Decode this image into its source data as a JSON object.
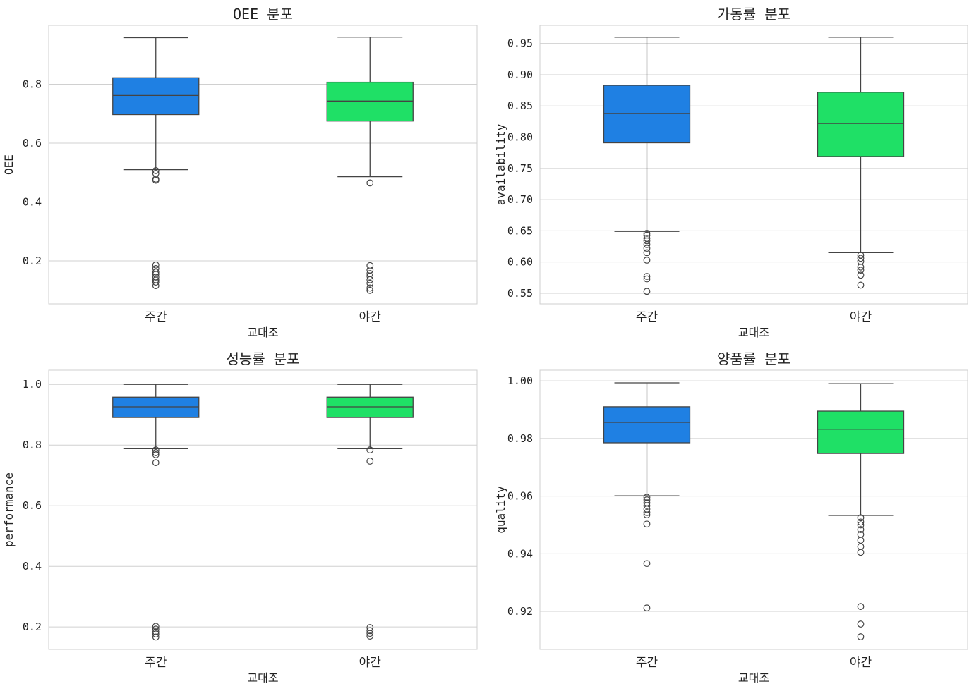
{
  "chart_data": [
    {
      "type": "box",
      "title": "OEE 분포",
      "xlabel": "교대조",
      "ylabel": "OEE",
      "categories": [
        "주간",
        "야간"
      ],
      "ylim": [
        0.054,
        1.0
      ],
      "yticks": [
        0.2,
        0.4,
        0.6,
        0.8
      ],
      "tick_decimals": 1,
      "grid": true,
      "boxes": [
        {
          "whislo": 0.51,
          "q1": 0.697,
          "med": 0.762,
          "q3": 0.822,
          "whishi": 0.958,
          "fliers": [
            0.507,
            0.497,
            0.478,
            0.474,
            0.186,
            0.174,
            0.162,
            0.155,
            0.145,
            0.135,
            0.128,
            0.116
          ]
        },
        {
          "whislo": 0.486,
          "q1": 0.675,
          "med": 0.743,
          "q3": 0.807,
          "whishi": 0.96,
          "fliers": [
            0.465,
            0.184,
            0.169,
            0.157,
            0.148,
            0.136,
            0.124,
            0.108,
            0.1
          ]
        }
      ]
    },
    {
      "type": "box",
      "title": "가동률 분포",
      "xlabel": "교대조",
      "ylabel": "availability",
      "categories": [
        "주간",
        "야간"
      ],
      "ylim": [
        0.533,
        0.979
      ],
      "yticks": [
        0.55,
        0.6,
        0.65,
        0.7,
        0.75,
        0.8,
        0.85,
        0.9,
        0.95
      ],
      "tick_decimals": 2,
      "grid": true,
      "boxes": [
        {
          "whislo": 0.649,
          "q1": 0.791,
          "med": 0.838,
          "q3": 0.883,
          "whishi": 0.96,
          "fliers": [
            0.646,
            0.643,
            0.638,
            0.634,
            0.628,
            0.622,
            0.615,
            0.603,
            0.577,
            0.573,
            0.553
          ]
        },
        {
          "whislo": 0.615,
          "q1": 0.769,
          "med": 0.822,
          "q3": 0.872,
          "whishi": 0.96,
          "fliers": [
            0.611,
            0.606,
            0.601,
            0.592,
            0.587,
            0.579,
            0.563
          ]
        }
      ]
    },
    {
      "type": "box",
      "title": "성능률 분포",
      "xlabel": "교대조",
      "ylabel": "performance",
      "categories": [
        "주간",
        "야간"
      ],
      "ylim": [
        0.126,
        1.047
      ],
      "yticks": [
        0.2,
        0.4,
        0.6,
        0.8,
        1.0
      ],
      "tick_decimals": 1,
      "grid": true,
      "boxes": [
        {
          "whislo": 0.788,
          "q1": 0.891,
          "med": 0.926,
          "q3": 0.958,
          "whishi": 1.0,
          "fliers": [
            0.784,
            0.775,
            0.768,
            0.742,
            0.202,
            0.193,
            0.184,
            0.177,
            0.167
          ]
        },
        {
          "whislo": 0.788,
          "q1": 0.891,
          "med": 0.926,
          "q3": 0.958,
          "whishi": 1.0,
          "fliers": [
            0.784,
            0.747,
            0.198,
            0.188,
            0.179,
            0.17
          ]
        }
      ]
    },
    {
      "type": "box",
      "title": "양품률 분포",
      "xlabel": "교대조",
      "ylabel": "quality",
      "categories": [
        "주간",
        "야간"
      ],
      "ylim": [
        0.9068,
        1.0037
      ],
      "yticks": [
        0.92,
        0.94,
        0.96,
        0.98,
        1.0
      ],
      "tick_decimals": 2,
      "grid": true,
      "boxes": [
        {
          "whislo": 0.9601,
          "q1": 0.9785,
          "med": 0.9856,
          "q3": 0.991,
          "whishi": 0.9993,
          "fliers": [
            0.9596,
            0.9587,
            0.9577,
            0.9567,
            0.9555,
            0.9543,
            0.9535,
            0.9503,
            0.9366,
            0.9212
          ]
        },
        {
          "whislo": 0.9533,
          "q1": 0.9748,
          "med": 0.9832,
          "q3": 0.9895,
          "whishi": 0.999,
          "fliers": [
            0.9525,
            0.951,
            0.95,
            0.9484,
            0.9467,
            0.9447,
            0.9425,
            0.9405,
            0.9217,
            0.9156,
            0.9112
          ]
        }
      ]
    }
  ],
  "colors": {
    "주간": "#1f80e3",
    "야간": "#1fe066",
    "grid": "#d0d0d0",
    "line": "#444444"
  }
}
